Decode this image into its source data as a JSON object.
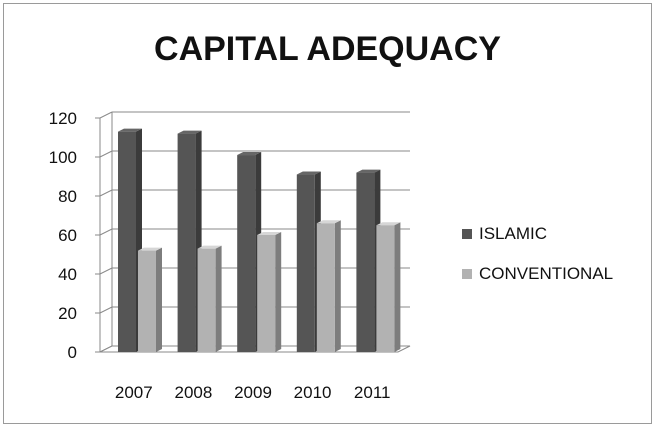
{
  "chart_data": {
    "type": "bar",
    "title": "CAPITAL ADEQUACY",
    "xlabel": "",
    "ylabel": "",
    "categories": [
      "2007",
      "2008",
      "2009",
      "2010",
      "2011"
    ],
    "series": [
      {
        "name": "ISLAMIC",
        "values": [
          113,
          112,
          101,
          91,
          92
        ],
        "color": "#555555"
      },
      {
        "name": "CONVENTIONAL",
        "values": [
          52,
          53,
          60,
          66,
          65
        ],
        "color": "#b2b2b2"
      }
    ],
    "ylim": [
      0,
      120
    ],
    "yticks": [
      "0",
      "20",
      "40",
      "60",
      "80",
      "100",
      "120"
    ],
    "grid": true,
    "legend_position": "right",
    "three_d": true
  }
}
